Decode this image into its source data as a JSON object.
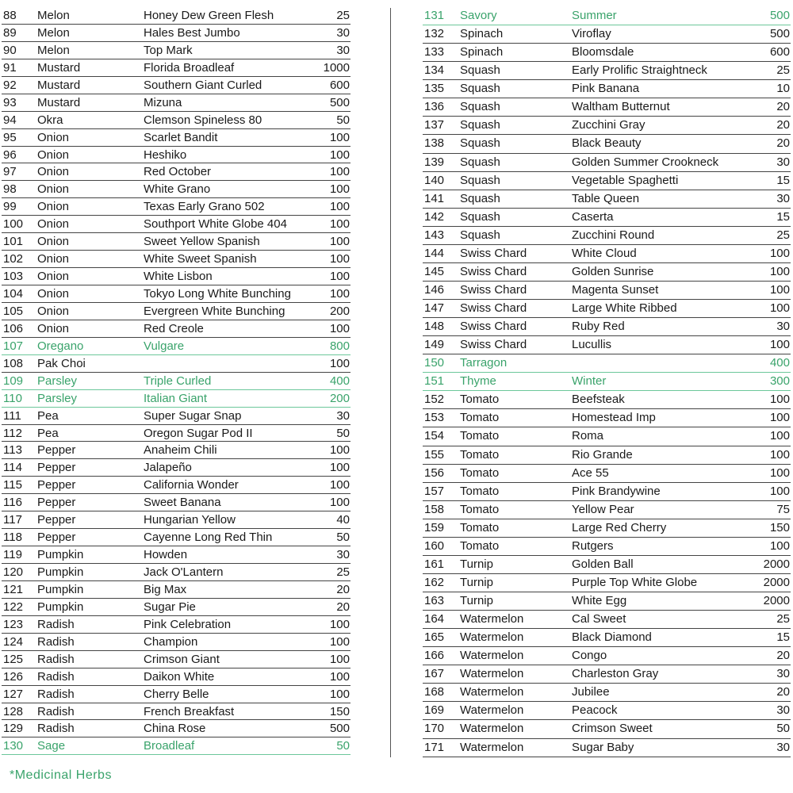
{
  "colors": {
    "herb": "#3aa36b",
    "text": "#1a1a1a"
  },
  "left_rows": [
    [
      "88",
      "Melon",
      "Honey Dew Green Flesh",
      "25",
      false
    ],
    [
      "89",
      "Melon",
      "Hales Best Jumbo",
      "30",
      false
    ],
    [
      "90",
      "Melon",
      "Top Mark",
      "30",
      false
    ],
    [
      "91",
      "Mustard",
      "Florida Broadleaf",
      "1000",
      false
    ],
    [
      "92",
      "Mustard",
      "Southern Giant Curled",
      "600",
      false
    ],
    [
      "93",
      "Mustard",
      "Mizuna",
      "500",
      false
    ],
    [
      "94",
      "Okra",
      "Clemson Spineless 80",
      "50",
      false
    ],
    [
      "95",
      "Onion",
      "Scarlet Bandit",
      "100",
      false
    ],
    [
      "96",
      "Onion",
      "Heshiko",
      "100",
      false
    ],
    [
      "97",
      "Onion",
      "Red October",
      "100",
      false
    ],
    [
      "98",
      "Onion",
      "White Grano",
      "100",
      false
    ],
    [
      "99",
      "Onion",
      "Texas Early Grano 502",
      "100",
      false
    ],
    [
      "100",
      "Onion",
      "Southport White Globe 404",
      "100",
      false
    ],
    [
      "101",
      "Onion",
      "Sweet Yellow Spanish",
      "100",
      false
    ],
    [
      "102",
      "Onion",
      "White Sweet Spanish",
      "100",
      false
    ],
    [
      "103",
      "Onion",
      "White Lisbon",
      "100",
      false
    ],
    [
      "104",
      "Onion",
      "Tokyo Long White Bunching",
      "100",
      false
    ],
    [
      "105",
      "Onion",
      "Evergreen White Bunching",
      "200",
      false
    ],
    [
      "106",
      "Onion",
      "Red Creole",
      "100",
      false
    ],
    [
      "107",
      "Oregano",
      "Vulgare",
      "800",
      true
    ],
    [
      "108",
      "Pak Choi",
      "",
      "100",
      false
    ],
    [
      "109",
      "Parsley",
      "Triple Curled",
      "400",
      true
    ],
    [
      "110",
      "Parsley",
      "Italian Giant",
      "200",
      true
    ],
    [
      "111",
      "Pea",
      "Super Sugar Snap",
      "30",
      false
    ],
    [
      "112",
      "Pea",
      "Oregon Sugar Pod II",
      "50",
      false
    ],
    [
      "113",
      "Pepper",
      "Anaheim Chili",
      "100",
      false
    ],
    [
      "114",
      "Pepper",
      "Jalapeño",
      "100",
      false
    ],
    [
      "115",
      "Pepper",
      "California Wonder",
      "100",
      false
    ],
    [
      "116",
      "Pepper",
      "Sweet Banana",
      "100",
      false
    ],
    [
      "117",
      "Pepper",
      "Hungarian Yellow",
      "40",
      false
    ],
    [
      "118",
      "Pepper",
      "Cayenne Long Red Thin",
      "50",
      false
    ],
    [
      "119",
      "Pumpkin",
      "Howden",
      "30",
      false
    ],
    [
      "120",
      "Pumpkin",
      "Jack O'Lantern",
      "25",
      false
    ],
    [
      "121",
      "Pumpkin",
      "Big Max",
      "20",
      false
    ],
    [
      "122",
      "Pumpkin",
      "Sugar Pie",
      "20",
      false
    ],
    [
      "123",
      "Radish",
      "Pink Celebration",
      "100",
      false
    ],
    [
      "124",
      "Radish",
      "Champion",
      "100",
      false
    ],
    [
      "125",
      "Radish",
      "Crimson Giant",
      "100",
      false
    ],
    [
      "126",
      "Radish",
      "Daikon White",
      "100",
      false
    ],
    [
      "127",
      "Radish",
      "Cherry Belle",
      "100",
      false
    ],
    [
      "128",
      "Radish",
      "French Breakfast",
      "150",
      false
    ],
    [
      "129",
      "Radish",
      "China Rose",
      "500",
      false
    ],
    [
      "130",
      "Sage",
      "Broadleaf",
      "50",
      true
    ]
  ],
  "right_rows": [
    [
      "131",
      "Savory",
      "Summer",
      "500",
      true
    ],
    [
      "132",
      "Spinach",
      "Viroflay",
      "500",
      false
    ],
    [
      "133",
      "Spinach",
      "Bloomsdale",
      "600",
      false
    ],
    [
      "134",
      "Squash",
      "Early Prolific Straightneck",
      "25",
      false
    ],
    [
      "135",
      "Squash",
      "Pink Banana",
      "10",
      false
    ],
    [
      "136",
      "Squash",
      "Waltham Butternut",
      "20",
      false
    ],
    [
      "137",
      "Squash",
      "Zucchini Gray",
      "20",
      false
    ],
    [
      "138",
      "Squash",
      "Black Beauty",
      "20",
      false
    ],
    [
      "139",
      "Squash",
      "Golden Summer Crookneck",
      "30",
      false
    ],
    [
      "140",
      "Squash",
      "Vegetable Spaghetti",
      "15",
      false
    ],
    [
      "141",
      "Squash",
      "Table Queen",
      "30",
      false
    ],
    [
      "142",
      "Squash",
      "Caserta",
      "15",
      false
    ],
    [
      "143",
      "Squash",
      "Zucchini Round",
      "25",
      false
    ],
    [
      "144",
      "Swiss Chard",
      "White Cloud",
      "100",
      false
    ],
    [
      "145",
      "Swiss Chard",
      "Golden Sunrise",
      "100",
      false
    ],
    [
      "146",
      "Swiss Chard",
      "Magenta Sunset",
      "100",
      false
    ],
    [
      "147",
      "Swiss Chard",
      "Large White Ribbed",
      "100",
      false
    ],
    [
      "148",
      "Swiss Chard",
      "Ruby Red",
      "30",
      false
    ],
    [
      "149",
      "Swiss Chard",
      "Lucullis",
      "100",
      false
    ],
    [
      "150",
      "Tarragon",
      "",
      "400",
      true
    ],
    [
      "151",
      "Thyme",
      "Winter",
      "300",
      true
    ],
    [
      "152",
      "Tomato",
      "Beefsteak",
      "100",
      false
    ],
    [
      "153",
      "Tomato",
      "Homestead Imp",
      "100",
      false
    ],
    [
      "154",
      "Tomato",
      "Roma",
      "100",
      false
    ],
    [
      "155",
      "Tomato",
      "Rio Grande",
      "100",
      false
    ],
    [
      "156",
      "Tomato",
      "Ace 55",
      "100",
      false
    ],
    [
      "157",
      "Tomato",
      "Pink Brandywine",
      "100",
      false
    ],
    [
      "158",
      "Tomato",
      "Yellow Pear",
      "75",
      false
    ],
    [
      "159",
      "Tomato",
      "Large Red Cherry",
      "150",
      false
    ],
    [
      "160",
      "Tomato",
      "Rutgers",
      "100",
      false
    ],
    [
      "161",
      "Turnip",
      "Golden Ball",
      "2000",
      false
    ],
    [
      "162",
      "Turnip",
      "Purple Top White Globe",
      "2000",
      false
    ],
    [
      "163",
      "Turnip",
      "White Egg",
      "2000",
      false
    ],
    [
      "164",
      "Watermelon",
      "Cal Sweet",
      "25",
      false
    ],
    [
      "165",
      "Watermelon",
      "Black Diamond",
      "15",
      false
    ],
    [
      "166",
      "Watermelon",
      "Congo",
      "20",
      false
    ],
    [
      "167",
      "Watermelon",
      "Charleston Gray",
      "30",
      false
    ],
    [
      "168",
      "Watermelon",
      "Jubilee",
      "20",
      false
    ],
    [
      "169",
      "Watermelon",
      "Peacock",
      "30",
      false
    ],
    [
      "170",
      "Watermelon",
      "Crimson Sweet",
      "50",
      false
    ],
    [
      "171",
      "Watermelon",
      "Sugar Baby",
      "30",
      false
    ]
  ],
  "footer": "*Medicinal Herbs"
}
